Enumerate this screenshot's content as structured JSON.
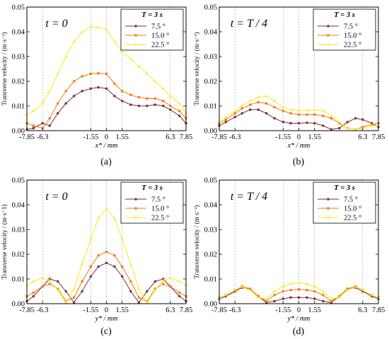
{
  "colors": {
    "series": [
      "#7a2e3c",
      "#f07c12",
      "#f8ea1a"
    ],
    "axis": "#000000",
    "guide": "#9a9a9a"
  },
  "chart_data": [
    {
      "type": "line",
      "panel_label": "(a)",
      "title": "t = 0",
      "xlabel": "x* / mm",
      "ylabel": "Transverse velocity / (m·s⁻¹)",
      "xlim": [
        -7.85,
        7.85
      ],
      "ylim": [
        0,
        0.05
      ],
      "xticks": [
        -7.85,
        -6.3,
        -1.55,
        0,
        1.55,
        6.3,
        7.85
      ],
      "xticklabels": [
        "-7.85",
        "-6.3",
        "-1.55",
        "0",
        "1.55",
        "6.3",
        "7.85"
      ],
      "yticks": [
        0,
        0.01,
        0.02,
        0.03,
        0.04,
        0.05
      ],
      "yticklabels": [
        "0.00",
        "0.01",
        "0.02",
        "0.03",
        "0.04",
        "0.05"
      ],
      "guides_x": [
        -6.3,
        -1.55,
        0,
        1.55,
        6.3
      ],
      "legend_title": "T = 3 s",
      "legend_position": "top-right",
      "x": [
        -7.85,
        -7.2,
        -6.3,
        -5.6,
        -4.8,
        -4.0,
        -3.2,
        -2.4,
        -1.55,
        -0.8,
        0,
        0.8,
        1.55,
        2.4,
        3.2,
        4.0,
        4.8,
        5.6,
        6.3,
        7.2,
        7.85
      ],
      "series": [
        {
          "name": "7.5 °",
          "values": [
            0.0005,
            0.001,
            0.003,
            0.002,
            0.007,
            0.011,
            0.014,
            0.016,
            0.017,
            0.0175,
            0.017,
            0.014,
            0.012,
            0.0105,
            0.01,
            0.01,
            0.0105,
            0.01,
            0.0085,
            0.006,
            0.003
          ]
        },
        {
          "name": "15.0 °",
          "values": [
            0.003,
            0.002,
            0.001,
            0.005,
            0.011,
            0.016,
            0.02,
            0.022,
            0.023,
            0.0232,
            0.023,
            0.019,
            0.016,
            0.0145,
            0.0135,
            0.013,
            0.013,
            0.012,
            0.01,
            0.008,
            0.005
          ]
        },
        {
          "name": "22.5 °",
          "values": [
            0.0065,
            0.008,
            0.011,
            0.016,
            0.023,
            0.03,
            0.036,
            0.04,
            0.042,
            0.0418,
            0.041,
            0.036,
            0.032,
            0.029,
            0.026,
            0.023,
            0.02,
            0.017,
            0.014,
            0.011,
            0.007
          ]
        }
      ]
    },
    {
      "type": "line",
      "panel_label": "(b)",
      "title": "t = T / 4",
      "xlabel": "x* / mm",
      "ylabel": "Transverse velocity / (m·s⁻¹)",
      "xlim": [
        -7.85,
        7.85
      ],
      "ylim": [
        0,
        0.05
      ],
      "xticks": [
        -7.85,
        -6.3,
        -1.55,
        0,
        1.55,
        6.3,
        7.85
      ],
      "xticklabels": [
        "-7.85",
        "-6.3",
        "-1.55",
        "0",
        "1.55",
        "6.3",
        "7.85"
      ],
      "yticks": [
        0,
        0.01,
        0.02,
        0.03,
        0.04,
        0.05
      ],
      "yticklabels": [
        "0.00",
        "0.01",
        "0.02",
        "0.03",
        "0.04",
        "0.05"
      ],
      "guides_x": [
        -6.3,
        -1.55,
        0,
        1.55,
        6.3
      ],
      "legend_title": "T = 3 s",
      "legend_position": "top-right",
      "x": [
        -7.85,
        -7.2,
        -6.3,
        -5.6,
        -4.8,
        -4.0,
        -3.2,
        -2.4,
        -1.55,
        -0.8,
        0,
        0.8,
        1.55,
        2.4,
        3.2,
        4.0,
        4.8,
        5.6,
        6.3,
        7.2,
        7.85
      ],
      "series": [
        {
          "name": "7.5 °",
          "values": [
            0.002,
            0.0035,
            0.0055,
            0.007,
            0.0085,
            0.0085,
            0.007,
            0.005,
            0.0035,
            0.003,
            0.003,
            0.0032,
            0.003,
            0.002,
            0.0005,
            0.001,
            0.0035,
            0.005,
            0.0045,
            0.003,
            0.0015
          ]
        },
        {
          "name": "15.0 °",
          "values": [
            0.003,
            0.0045,
            0.007,
            0.009,
            0.0105,
            0.0115,
            0.011,
            0.0095,
            0.008,
            0.007,
            0.0065,
            0.0065,
            0.0065,
            0.006,
            0.005,
            0.003,
            0.001,
            0.0005,
            0.0015,
            0.0025,
            0.003
          ]
        },
        {
          "name": "22.5 °",
          "values": [
            0.0035,
            0.0055,
            0.008,
            0.01,
            0.012,
            0.0135,
            0.014,
            0.012,
            0.0095,
            0.0085,
            0.0082,
            0.0082,
            0.0085,
            0.008,
            0.006,
            0.0035,
            0.001,
            0.0005,
            0.001,
            0.002,
            0.002
          ]
        }
      ]
    },
    {
      "type": "line",
      "panel_label": "(c)",
      "title": "t = 0",
      "xlabel": "y* / mm",
      "ylabel": "Transverse velocity / (m·s⁻1)",
      "xlim": [
        -7.85,
        7.85
      ],
      "ylim": [
        0,
        0.05
      ],
      "xticks": [
        -7.85,
        -6.3,
        -1.55,
        0,
        1.55,
        6.3,
        7.85
      ],
      "xticklabels": [
        "-7.85",
        "-6.3",
        "-1.55",
        "0",
        "1.55",
        "6.3",
        "7.85"
      ],
      "yticks": [
        0,
        0.01,
        0.02,
        0.03,
        0.04,
        0.05
      ],
      "yticklabels": [
        "0.00",
        "0.01",
        "0.02",
        "0.03",
        "0.04",
        "0.05"
      ],
      "guides_x": [
        -6.3,
        -1.55,
        0,
        1.55,
        6.3
      ],
      "legend_title": "T = 3 s",
      "legend_position": "top-right",
      "x": [
        -7.85,
        -7.2,
        -6.3,
        -5.6,
        -4.8,
        -4.0,
        -3.2,
        -2.4,
        -1.55,
        -0.8,
        0,
        0.8,
        1.55,
        2.4,
        3.2,
        4.0,
        4.8,
        5.6,
        6.3,
        7.2,
        7.85
      ],
      "series": [
        {
          "name": "7.5 °",
          "values": [
            0.001,
            0.003,
            0.007,
            0.01,
            0.009,
            0.005,
            0.0005,
            0.005,
            0.011,
            0.015,
            0.0165,
            0.015,
            0.011,
            0.005,
            0.0005,
            0.005,
            0.009,
            0.01,
            0.007,
            0.003,
            0.001
          ]
        },
        {
          "name": "15.0 °",
          "values": [
            0.003,
            0.0045,
            0.007,
            0.008,
            0.006,
            0.001,
            0.0025,
            0.009,
            0.015,
            0.0195,
            0.021,
            0.0195,
            0.015,
            0.009,
            0.0025,
            0.001,
            0.006,
            0.008,
            0.007,
            0.0045,
            0.003
          ]
        },
        {
          "name": "22.5 °",
          "values": [
            0.0075,
            0.009,
            0.0105,
            0.0095,
            0.0055,
            0.0005,
            0.006,
            0.016,
            0.026,
            0.0345,
            0.0385,
            0.0345,
            0.026,
            0.016,
            0.006,
            0.0005,
            0.0055,
            0.0095,
            0.0105,
            0.009,
            0.0075
          ]
        }
      ]
    },
    {
      "type": "line",
      "panel_label": "(d)",
      "title": "t = T / 4",
      "xlabel": "y* / mm",
      "ylabel": "Transverse velocity / (m·s⁻¹)",
      "xlim": [
        -7.85,
        7.85
      ],
      "ylim": [
        0,
        0.05
      ],
      "xticks": [
        -7.85,
        -6.3,
        -1.55,
        0,
        1.55,
        6.3,
        7.85
      ],
      "xticklabels": [
        "-7.85",
        "-6.3",
        "-1.55",
        "0",
        "1.55",
        "6.3",
        "7.85"
      ],
      "yticks": [
        0,
        0.01,
        0.02,
        0.03,
        0.04,
        0.05
      ],
      "yticklabels": [
        "0.00",
        "0.01",
        "0.02",
        "0.03",
        "0.04",
        "0.05"
      ],
      "guides_x": [
        -6.3,
        -1.55,
        0,
        1.55,
        6.3
      ],
      "legend_title": "T = 3 s",
      "legend_position": "top-right",
      "x": [
        -7.85,
        -7.2,
        -6.3,
        -5.6,
        -4.8,
        -4.0,
        -3.2,
        -2.4,
        -1.55,
        -0.8,
        0,
        0.8,
        1.55,
        2.4,
        3.2,
        4.0,
        4.8,
        5.6,
        6.3,
        7.2,
        7.85
      ],
      "series": [
        {
          "name": "7.5 °",
          "values": [
            0.002,
            0.003,
            0.005,
            0.0065,
            0.006,
            0.003,
            0.0005,
            0.001,
            0.002,
            0.0025,
            0.0025,
            0.0025,
            0.002,
            0.001,
            0.0005,
            0.003,
            0.006,
            0.0065,
            0.005,
            0.003,
            0.002
          ]
        },
        {
          "name": "15.0 °",
          "values": [
            0.0025,
            0.0035,
            0.0055,
            0.007,
            0.006,
            0.003,
            0.001,
            0.0035,
            0.005,
            0.0055,
            0.0058,
            0.0055,
            0.005,
            0.0035,
            0.001,
            0.003,
            0.006,
            0.007,
            0.0055,
            0.0035,
            0.0025
          ]
        },
        {
          "name": "22.5 °",
          "values": [
            0.0025,
            0.0035,
            0.0055,
            0.0068,
            0.0055,
            0.0025,
            0.002,
            0.005,
            0.007,
            0.008,
            0.0085,
            0.008,
            0.007,
            0.005,
            0.002,
            0.0025,
            0.0055,
            0.0068,
            0.0055,
            0.0035,
            0.0025
          ]
        }
      ]
    }
  ]
}
